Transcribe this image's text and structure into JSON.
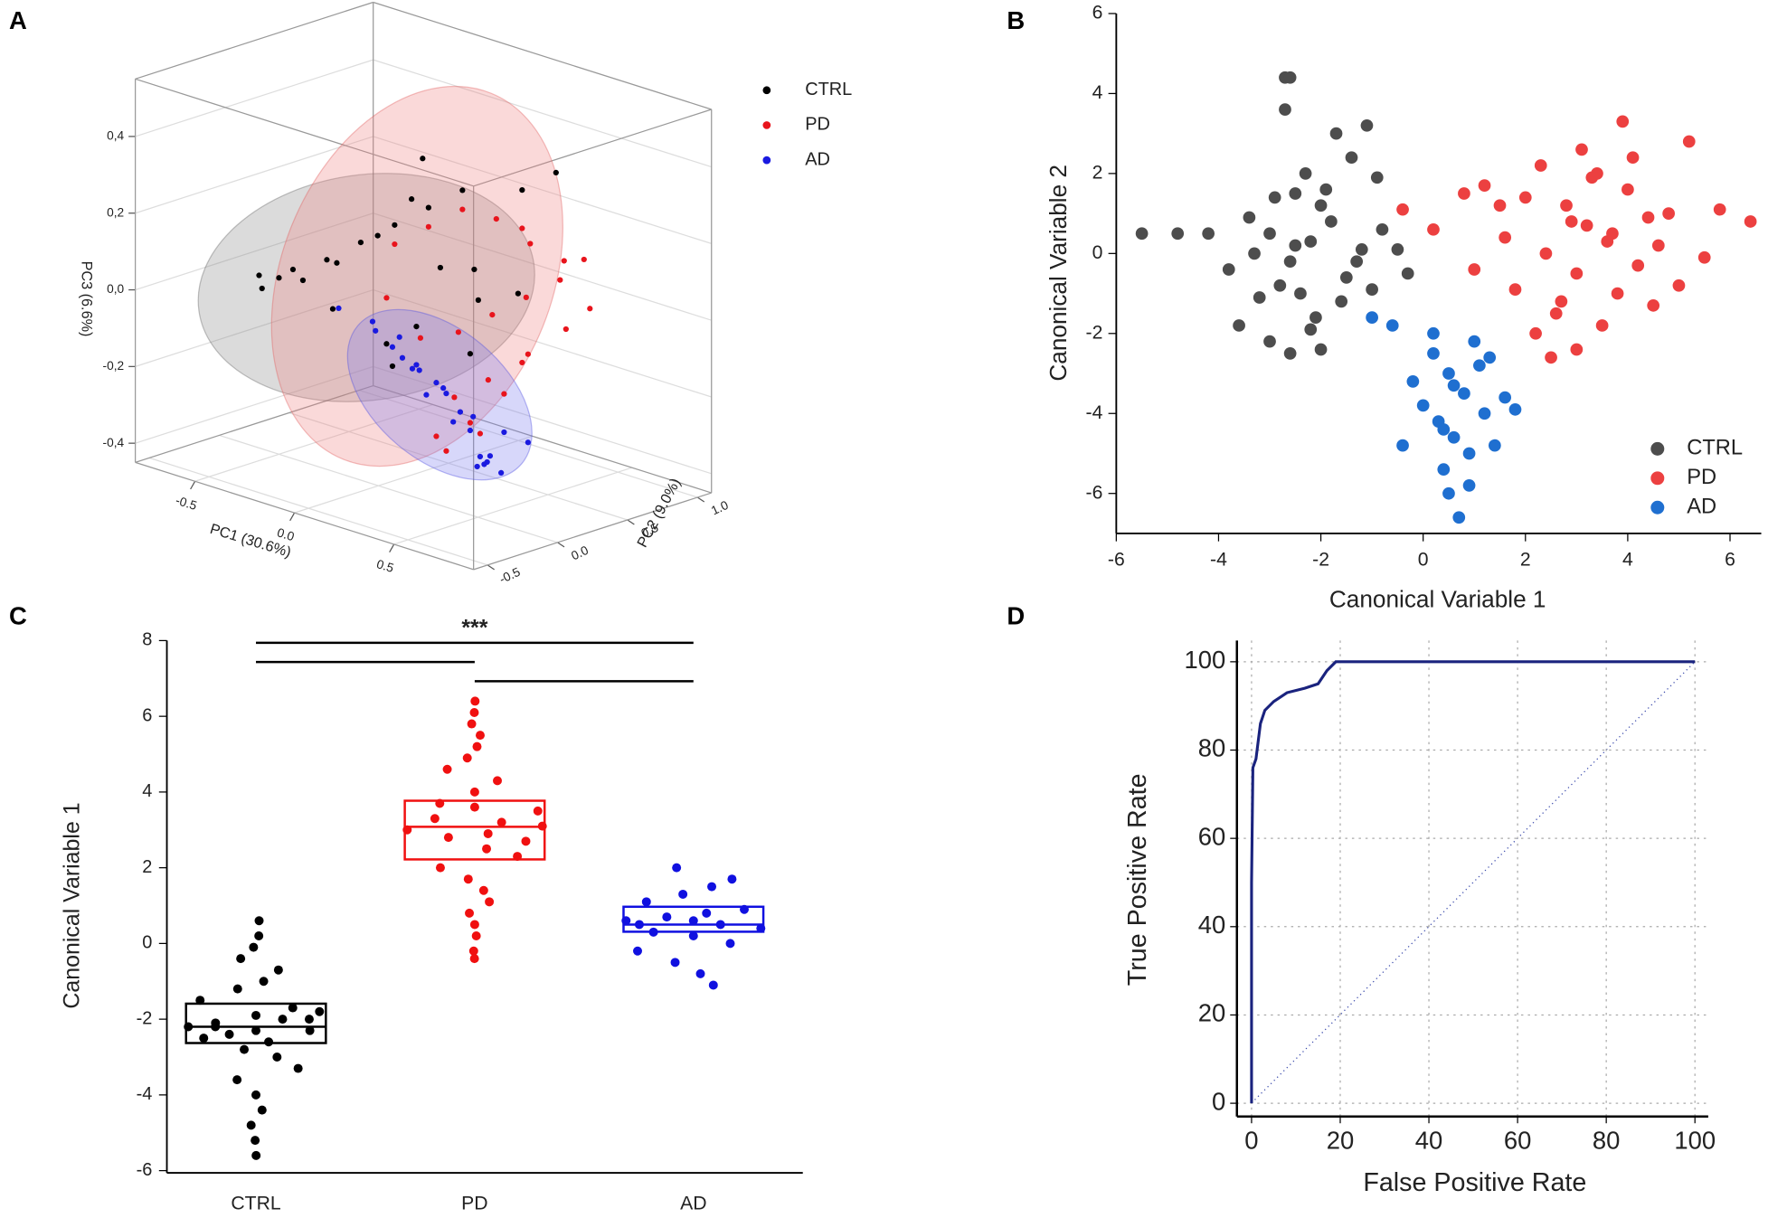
{
  "chart_data": [
    {
      "type": "scatter3d",
      "panel_label": "A",
      "xlabel": "PC1 (30.6%)",
      "ylabel": "PC2 (9.0%)",
      "zlabel": "PC3 (6.6%)",
      "xlim": [
        -0.8,
        0.9
      ],
      "ylim": [
        -0.6,
        1.1
      ],
      "zlim": [
        -0.45,
        0.55
      ],
      "xticks": [
        -0.5,
        {
          "value": 0,
          "label": "0.0"
        },
        0.5
      ],
      "yticks": [
        -0.5,
        {
          "value": 0,
          "label": "0.0"
        },
        0.5,
        {
          "value": 1,
          "label": "1.0"
        }
      ],
      "zticks": [
        {
          "value": -0.4,
          "label": "-0,4"
        },
        {
          "value": -0.2,
          "label": "-0,2"
        },
        {
          "value": 0,
          "label": "0,0"
        },
        {
          "value": 0.2,
          "label": "0,2"
        },
        {
          "value": 0.4,
          "label": "0,4"
        }
      ],
      "grid": true,
      "series": [
        {
          "name": "CTRL",
          "color": "#000000",
          "x": [
            -0.6,
            -0.5,
            -0.55,
            -0.4,
            -0.3,
            -0.2,
            -0.1,
            0.0,
            0.1,
            -0.45,
            -0.35,
            -0.25,
            -0.15,
            0.05,
            0.15,
            -0.5,
            -0.3,
            0.2,
            0.3,
            0.25,
            -0.1,
            0.0,
            0.35,
            0.4,
            -0.2
          ],
          "y": [
            0.0,
            0.1,
            -0.05,
            0.2,
            0.3,
            0.4,
            0.5,
            0.6,
            0.3,
            0.1,
            0.2,
            0.35,
            0.45,
            0.2,
            0.5,
            0.0,
            0.1,
            0.4,
            0.6,
            0.3,
            0.2,
            0.1,
            0.5,
            0.7,
            0.6
          ],
          "z": [
            0.0,
            0.02,
            -0.02,
            0.05,
            0.1,
            0.15,
            0.2,
            0.25,
            0.1,
            0.0,
            0.05,
            0.12,
            0.22,
            -0.05,
            0.0,
            0.01,
            -0.05,
            0.1,
            0.3,
            -0.1,
            -0.12,
            -0.15,
            0.05,
            0.35,
            0.3
          ]
        },
        {
          "name": "PD",
          "color": "#e8141c",
          "x": [
            -0.2,
            -0.1,
            0.0,
            0.1,
            0.2,
            0.3,
            0.25,
            0.15,
            0.05,
            0.35,
            0.4,
            0.3,
            0.2,
            0.1,
            0.45,
            0.5,
            0.3,
            0.2,
            0.0,
            -0.1,
            0.35,
            0.25,
            0.15,
            0.4,
            0.3
          ],
          "y": [
            0.4,
            0.5,
            0.6,
            0.7,
            0.8,
            0.9,
            0.7,
            0.6,
            0.5,
            0.8,
            0.9,
            0.6,
            0.5,
            0.4,
            0.7,
            0.8,
            0.3,
            0.2,
            0.3,
            0.2,
            0.4,
            0.3,
            0.2,
            0.5,
            0.6
          ],
          "z": [
            0.1,
            0.15,
            0.2,
            0.18,
            0.12,
            0.08,
            0.0,
            -0.05,
            -0.1,
            0.05,
            0.1,
            -0.15,
            -0.2,
            -0.25,
            -0.05,
            0.0,
            -0.3,
            -0.35,
            -0.1,
            0.0,
            -0.2,
            -0.28,
            -0.32,
            -0.1,
            0.2
          ]
        },
        {
          "name": "AD",
          "color": "#1a1ae0",
          "x": [
            0.0,
            0.1,
            0.2,
            0.3,
            0.25,
            0.15,
            0.05,
            0.35,
            0.3,
            0.2,
            0.1,
            0.0,
            -0.1,
            0.25,
            0.3,
            0.35,
            0.2,
            0.15,
            0.05,
            0.4,
            -0.2,
            -0.05,
            0.1,
            0.3,
            0.25
          ],
          "y": [
            0.1,
            0.15,
            0.2,
            0.25,
            0.3,
            0.2,
            0.1,
            0.3,
            0.35,
            0.25,
            0.2,
            0.15,
            0.1,
            0.4,
            0.45,
            0.4,
            0.3,
            0.25,
            0.2,
            0.5,
            0.0,
            0.05,
            0.1,
            0.3,
            0.35
          ],
          "z": [
            -0.1,
            -0.15,
            -0.2,
            -0.25,
            -0.3,
            -0.18,
            -0.12,
            -0.35,
            -0.38,
            -0.28,
            -0.22,
            -0.08,
            -0.05,
            -0.4,
            -0.42,
            -0.3,
            -0.26,
            -0.2,
            -0.15,
            -0.33,
            -0.02,
            -0.06,
            -0.14,
            -0.36,
            -0.4
          ]
        }
      ]
    },
    {
      "type": "scatter",
      "panel_label": "B",
      "xlabel": "Canonical Variable 1",
      "ylabel": "Canonical Variable 2",
      "xlim": [
        -6,
        6.5
      ],
      "ylim": [
        -7,
        6
      ],
      "xticks": [
        -6,
        -4,
        -2,
        0,
        2,
        4,
        6
      ],
      "yticks": [
        -6,
        -4,
        -2,
        0,
        2,
        4,
        6
      ],
      "legend": "lower right",
      "series": [
        {
          "name": "CTRL",
          "color": "#4d4d4d",
          "x": [
            -2.2,
            -1.8,
            -2.6,
            -3.0,
            -1.5,
            -2.0,
            -2.4,
            -3.4,
            -1.2,
            -2.8,
            -1.9,
            -2.5,
            -3.8,
            -0.8,
            -2.1,
            -1.6,
            -2.9,
            -3.2,
            -1.0,
            -2.3,
            -4.2,
            -0.5,
            -2.7,
            -1.4,
            -3.6,
            -2.0,
            -1.7,
            -2.6,
            -4.8,
            -5.5,
            -2.7,
            -2.6,
            -1.1,
            -0.9,
            -3.0,
            -2.2,
            -1.3,
            -3.3,
            -2.5,
            -0.3
          ],
          "y": [
            0.3,
            0.8,
            -0.2,
            0.5,
            -0.6,
            1.2,
            -1.0,
            0.9,
            0.1,
            -0.8,
            1.6,
            0.2,
            -0.4,
            0.6,
            -1.6,
            -1.2,
            1.4,
            -1.1,
            -0.9,
            2.0,
            0.5,
            0.1,
            4.4,
            2.4,
            -1.8,
            -2.4,
            3.0,
            -2.5,
            0.5,
            0.5,
            3.6,
            4.4,
            3.2,
            1.9,
            -2.2,
            -1.9,
            -0.2,
            0.0,
            1.5,
            -0.5
          ]
        },
        {
          "name": "PD",
          "color": "#ec4040",
          "x": [
            3.2,
            2.8,
            3.6,
            4.0,
            2.4,
            3.0,
            3.4,
            4.4,
            2.0,
            3.8,
            2.6,
            4.8,
            1.6,
            3.1,
            5.2,
            2.2,
            3.5,
            4.2,
            1.2,
            2.9,
            6.4,
            5.8,
            0.2,
            1.0,
            2.5,
            3.9,
            4.6,
            3.3,
            2.7,
            1.8,
            3.7,
            5.0,
            0.8,
            4.1,
            2.3,
            3.0,
            4.5,
            1.5,
            -0.4,
            5.5
          ],
          "y": [
            0.7,
            1.2,
            0.3,
            1.6,
            0.0,
            -0.5,
            2.0,
            0.9,
            1.4,
            -1.0,
            -1.5,
            1.0,
            0.4,
            2.6,
            2.8,
            -2.0,
            -1.8,
            -0.3,
            1.7,
            0.8,
            0.8,
            1.1,
            0.6,
            -0.4,
            -2.6,
            3.3,
            0.2,
            1.9,
            -1.2,
            -0.9,
            0.5,
            -0.8,
            1.5,
            2.4,
            2.2,
            -2.4,
            -1.3,
            1.2,
            1.1,
            -0.1
          ]
        },
        {
          "name": "AD",
          "color": "#1f6fd0",
          "x": [
            0.5,
            0.8,
            0.2,
            1.2,
            0.0,
            0.6,
            1.0,
            0.4,
            1.6,
            -0.2,
            0.9,
            0.3,
            1.4,
            0.7,
            -0.4,
            1.1,
            0.5,
            1.8,
            0.2,
            0.9,
            -1.0,
            -0.6,
            0.4,
            1.3,
            0.6
          ],
          "y": [
            -3.0,
            -3.5,
            -2.5,
            -4.0,
            -3.8,
            -4.6,
            -2.2,
            -5.4,
            -3.6,
            -3.2,
            -5.0,
            -4.2,
            -4.8,
            -6.6,
            -4.8,
            -2.8,
            -6.0,
            -3.9,
            -2.0,
            -5.8,
            -1.6,
            -1.8,
            -4.4,
            -2.6,
            -3.3
          ]
        }
      ]
    },
    {
      "type": "box",
      "panel_label": "C",
      "ylabel": "Canonical Variable 1",
      "annotation": "***",
      "categories": [
        "CTRL",
        "PD",
        "AD"
      ],
      "colors": [
        "#000000",
        "#f01010",
        "#1010e0"
      ],
      "ylim": [
        -6,
        8
      ],
      "yticks": [
        -6,
        -4,
        -2,
        0,
        2,
        4,
        6,
        8
      ],
      "q1": [
        -2.63,
        2.22,
        0.31
      ],
      "median": [
        -2.2,
        3.08,
        0.5
      ],
      "q3": [
        -1.59,
        3.77,
        0.97
      ],
      "points": [
        [
          -2.2,
          -2.0,
          -2.4,
          -1.8,
          -2.6,
          -2.1,
          -2.3,
          -1.9,
          -2.5,
          -1.7,
          -2.8,
          -1.5,
          -3.0,
          -1.2,
          -3.3,
          -1.0,
          -3.6,
          -0.7,
          -4.0,
          -0.4,
          -4.4,
          -0.1,
          -4.8,
          0.2,
          -5.2,
          0.6,
          -5.6,
          -2.2,
          -2.0,
          -2.3
        ],
        [
          3.0,
          3.2,
          2.8,
          3.5,
          2.5,
          3.7,
          2.3,
          4.0,
          2.0,
          4.3,
          1.7,
          4.6,
          1.4,
          4.9,
          1.1,
          5.2,
          0.8,
          5.5,
          0.5,
          5.8,
          0.2,
          6.1,
          -0.2,
          6.4,
          -0.4,
          3.1,
          2.9,
          3.3,
          2.7,
          3.6
        ],
        [
          0.6,
          0.5,
          0.7,
          0.4,
          0.8,
          0.3,
          0.9,
          0.2,
          1.1,
          0.0,
          1.3,
          -0.2,
          1.5,
          -0.5,
          1.7,
          -0.8,
          2.0,
          -1.1,
          0.6,
          0.5
        ]
      ]
    },
    {
      "type": "line",
      "panel_label": "D",
      "xlabel": "False Positive Rate",
      "ylabel": "True Positive Rate",
      "xlim": [
        -3.3,
        103
      ],
      "ylim": [
        -3,
        104.8
      ],
      "xticks": [
        0,
        20,
        40,
        60,
        80,
        100
      ],
      "yticks": [
        0,
        20,
        40,
        60,
        80,
        100
      ],
      "grid": true,
      "color": "#1a237e",
      "x": [
        0,
        0,
        0.3,
        1,
        1.5,
        2,
        3,
        5,
        8,
        12,
        15,
        17,
        19,
        100
      ],
      "y": [
        0,
        50,
        76,
        78,
        82,
        86,
        89,
        91,
        93,
        94,
        95,
        98,
        100,
        100
      ]
    }
  ]
}
